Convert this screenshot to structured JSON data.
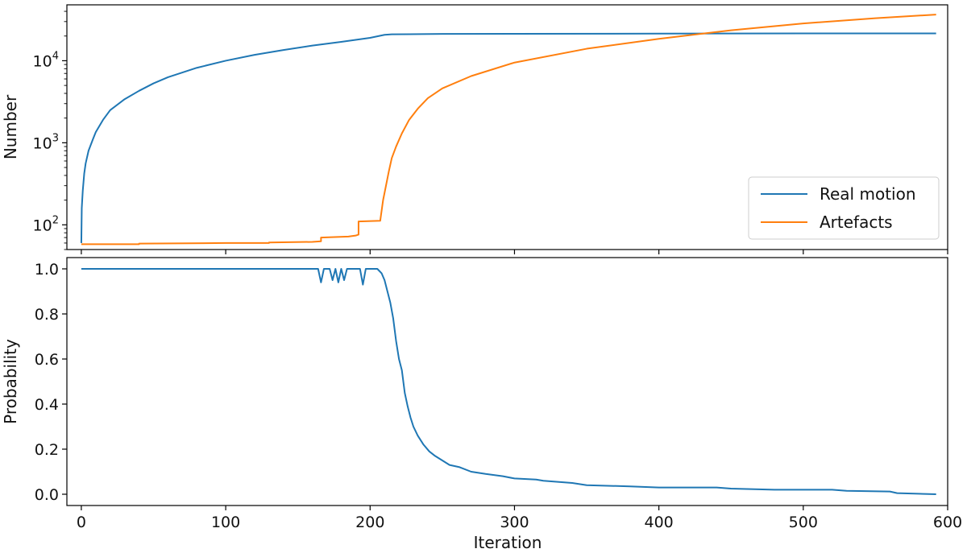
{
  "chart_data": [
    {
      "type": "line",
      "panel": "top",
      "ylabel": "Number",
      "yscale": "log",
      "ylim": [
        50,
        48000
      ],
      "xlim": [
        -10,
        600
      ],
      "yticks": [
        {
          "value": 100,
          "base": "10",
          "exp": "2"
        },
        {
          "value": 1000,
          "base": "10",
          "exp": "3"
        },
        {
          "value": 10000,
          "base": "10",
          "exp": "4"
        }
      ],
      "grid": false,
      "legend": {
        "placement": "lower-right"
      },
      "series": [
        {
          "name": "Real motion",
          "color": "#1f77b4",
          "points": [
            [
              0,
              60
            ],
            [
              0.3,
              160
            ],
            [
              1,
              260
            ],
            [
              2,
              420
            ],
            [
              3,
              560
            ],
            [
              5,
              800
            ],
            [
              8,
              1100
            ],
            [
              10,
              1350
            ],
            [
              15,
              1900
            ],
            [
              20,
              2500
            ],
            [
              30,
              3400
            ],
            [
              40,
              4300
            ],
            [
              50,
              5300
            ],
            [
              60,
              6300
            ],
            [
              80,
              8200
            ],
            [
              100,
              10000
            ],
            [
              120,
              11800
            ],
            [
              140,
              13500
            ],
            [
              160,
              15300
            ],
            [
              180,
              17000
            ],
            [
              200,
              19000
            ],
            [
              210,
              20700
            ],
            [
              215,
              21000
            ],
            [
              250,
              21200
            ],
            [
              300,
              21300
            ],
            [
              400,
              21400
            ],
            [
              500,
              21500
            ],
            [
              592,
              21500
            ]
          ]
        },
        {
          "name": "Artefacts",
          "color": "#ff7f0e",
          "points": [
            [
              0,
              58
            ],
            [
              40,
              58
            ],
            [
              40,
              59
            ],
            [
              100,
              60
            ],
            [
              130,
              60
            ],
            [
              130,
              61
            ],
            [
              160,
              62
            ],
            [
              166,
              63
            ],
            [
              166,
              70
            ],
            [
              185,
              72
            ],
            [
              190,
              74
            ],
            [
              192,
              76
            ],
            [
              192,
              110
            ],
            [
              207,
              112
            ],
            [
              209,
              200
            ],
            [
              211,
              300
            ],
            [
              213,
              450
            ],
            [
              215,
              650
            ],
            [
              218,
              900
            ],
            [
              222,
              1300
            ],
            [
              227,
              1900
            ],
            [
              233,
              2600
            ],
            [
              240,
              3500
            ],
            [
              250,
              4600
            ],
            [
              270,
              6500
            ],
            [
              300,
              9500
            ],
            [
              350,
              14000
            ],
            [
              400,
              18500
            ],
            [
              450,
              23500
            ],
            [
              500,
              28500
            ],
            [
              550,
              33000
            ],
            [
              592,
              36500
            ]
          ]
        }
      ]
    },
    {
      "type": "line",
      "panel": "bottom",
      "xlabel": "Iteration",
      "ylabel": "Probability",
      "xlim": [
        -10,
        600
      ],
      "ylim": [
        -0.05,
        1.05
      ],
      "xticks": [
        0,
        100,
        200,
        300,
        400,
        500,
        600
      ],
      "yticks": [
        "0.0",
        "0.2",
        "0.4",
        "0.6",
        "0.8",
        "1.0"
      ],
      "ytick_values": [
        0,
        0.2,
        0.4,
        0.6,
        0.8,
        1.0
      ],
      "grid": false,
      "series": [
        {
          "color": "#1f77b4",
          "points": [
            [
              0,
              1.0
            ],
            [
              164,
              1.0
            ],
            [
              166,
              0.94
            ],
            [
              168,
              1.0
            ],
            [
              172,
              1.0
            ],
            [
              174,
              0.95
            ],
            [
              176,
              1.0
            ],
            [
              178,
              0.94
            ],
            [
              180,
              1.0
            ],
            [
              182,
              0.95
            ],
            [
              184,
              1.0
            ],
            [
              193,
              1.0
            ],
            [
              195,
              0.93
            ],
            [
              197,
              1.0
            ],
            [
              205,
              1.0
            ],
            [
              208,
              0.98
            ],
            [
              210,
              0.95
            ],
            [
              212,
              0.9
            ],
            [
              214,
              0.85
            ],
            [
              216,
              0.78
            ],
            [
              218,
              0.68
            ],
            [
              220,
              0.6
            ],
            [
              222,
              0.55
            ],
            [
              224,
              0.45
            ],
            [
              226,
              0.39
            ],
            [
              228,
              0.34
            ],
            [
              230,
              0.3
            ],
            [
              233,
              0.26
            ],
            [
              237,
              0.22
            ],
            [
              241,
              0.19
            ],
            [
              245,
              0.17
            ],
            [
              250,
              0.15
            ],
            [
              255,
              0.13
            ],
            [
              262,
              0.12
            ],
            [
              270,
              0.1
            ],
            [
              280,
              0.09
            ],
            [
              292,
              0.08
            ],
            [
              300,
              0.07
            ],
            [
              315,
              0.065
            ],
            [
              320,
              0.06
            ],
            [
              340,
              0.05
            ],
            [
              350,
              0.04
            ],
            [
              380,
              0.035
            ],
            [
              400,
              0.03
            ],
            [
              440,
              0.03
            ],
            [
              450,
              0.025
            ],
            [
              480,
              0.02
            ],
            [
              520,
              0.02
            ],
            [
              530,
              0.015
            ],
            [
              560,
              0.012
            ],
            [
              565,
              0.005
            ],
            [
              592,
              0.0
            ]
          ]
        }
      ]
    }
  ]
}
